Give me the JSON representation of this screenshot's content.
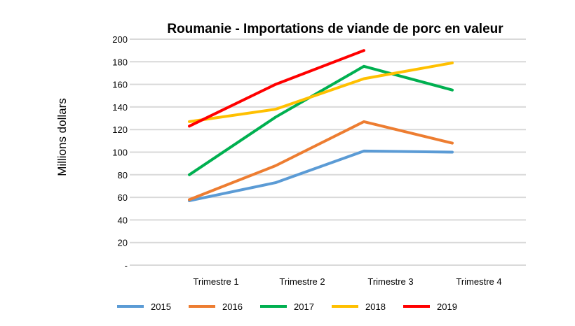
{
  "chart_data": {
    "type": "line",
    "title": "Roumanie - Importations de viande de porc en valeur",
    "xlabel": "",
    "ylabel": "Millions dollars",
    "categories": [
      "Trimestre 1",
      "Trimestre 2",
      "Trimestre 3",
      "Trimestre 4"
    ],
    "ylim": [
      0,
      200
    ],
    "yticks": [
      0,
      20,
      40,
      60,
      80,
      100,
      120,
      140,
      160,
      180,
      200
    ],
    "ytick_labels": [
      "-",
      "20",
      "40",
      "60",
      "80",
      "100",
      "120",
      "140",
      "160",
      "180",
      "200"
    ],
    "grid": true,
    "legend": "bottom",
    "series": [
      {
        "name": "2015",
        "color": "#5b9bd5",
        "values": [
          57,
          73,
          101,
          100
        ]
      },
      {
        "name": "2016",
        "color": "#ed7d31",
        "values": [
          58,
          88,
          127,
          108
        ]
      },
      {
        "name": "2017",
        "color": "#00b050",
        "values": [
          80,
          131,
          176,
          155
        ]
      },
      {
        "name": "2018",
        "color": "#ffc000",
        "values": [
          127,
          138,
          165,
          179
        ]
      },
      {
        "name": "2019",
        "color": "#ff0000",
        "values": [
          123,
          160,
          190,
          null
        ]
      }
    ]
  }
}
